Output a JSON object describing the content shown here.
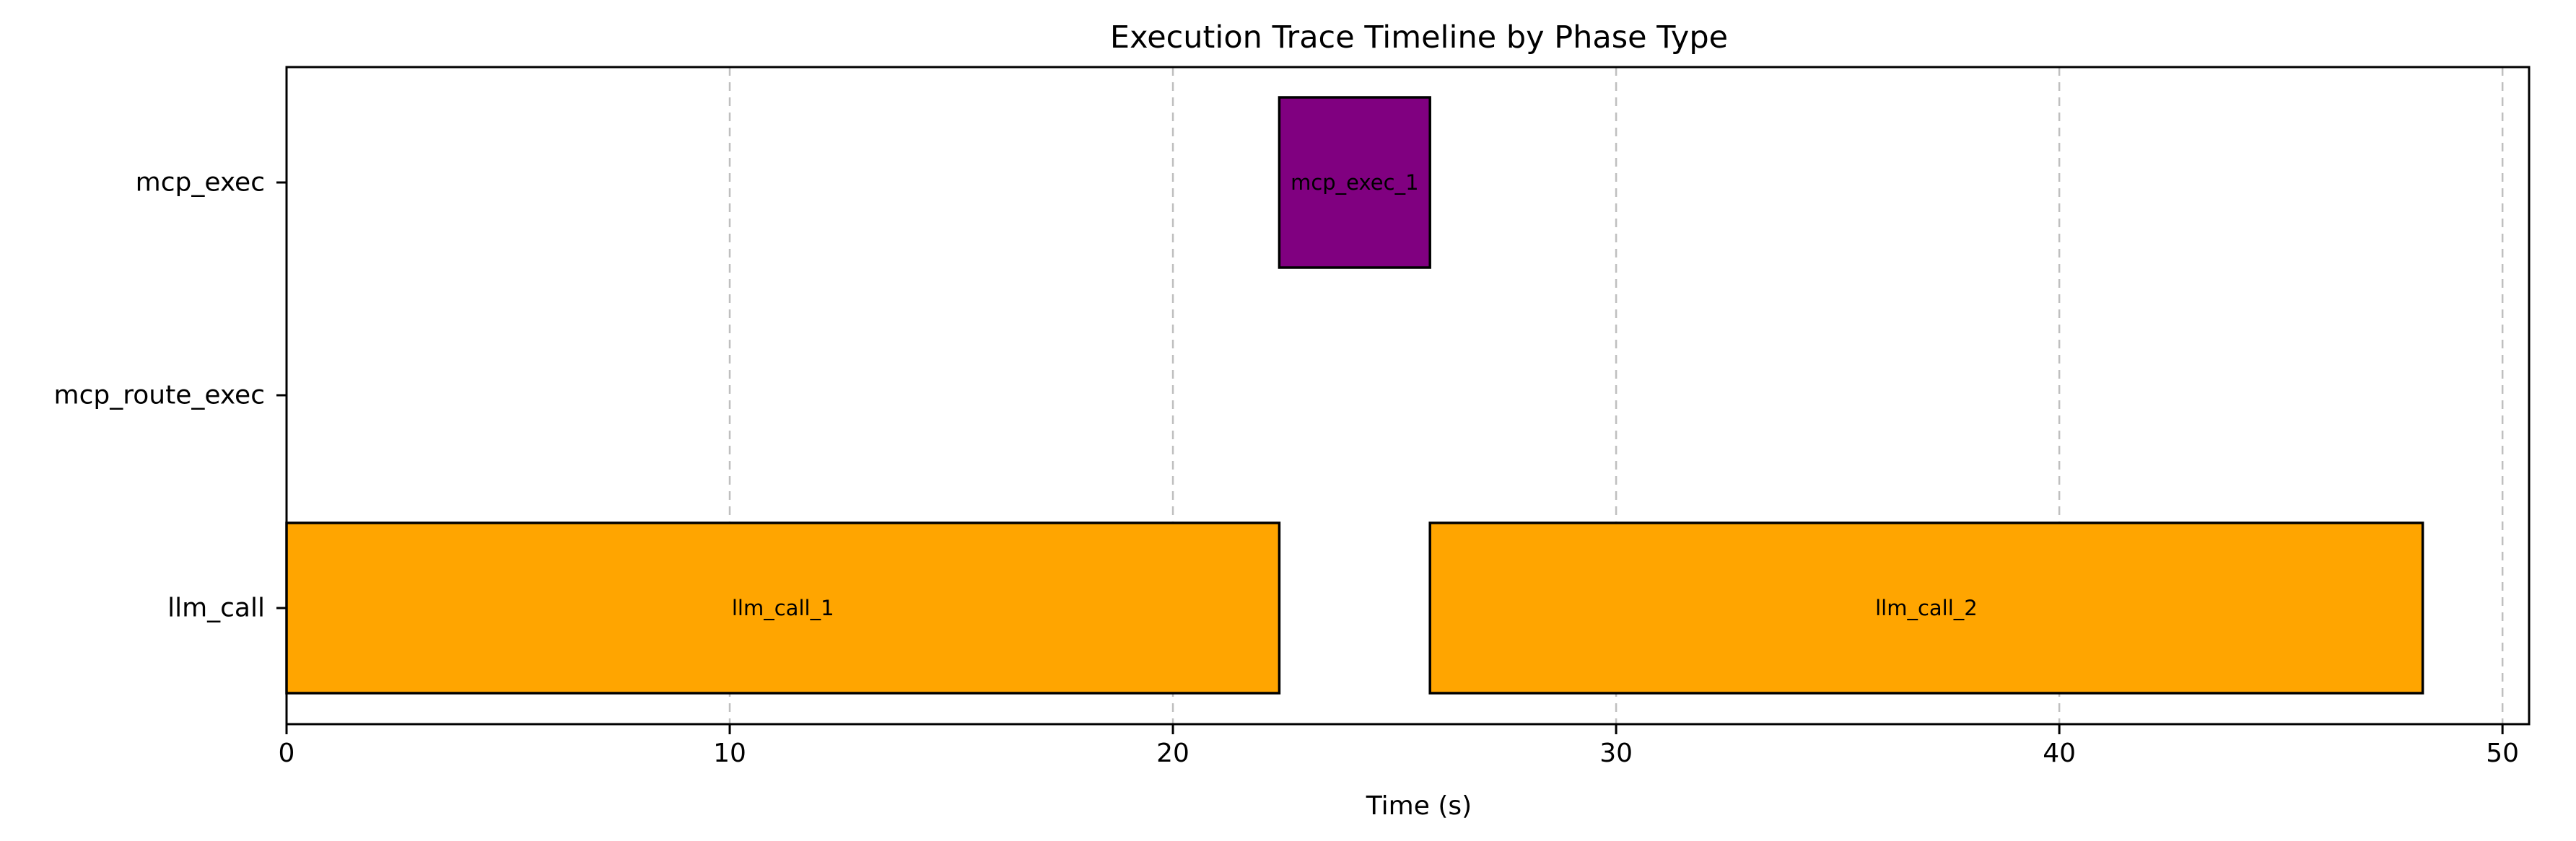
{
  "chart_data": {
    "type": "bar",
    "orientation": "horizontal",
    "title": "Execution Trace Timeline by Phase Type",
    "xlabel": "Time (s)",
    "ylabel": "",
    "xlim": [
      0,
      50.6
    ],
    "x_ticks": [
      0,
      10,
      20,
      30,
      40,
      50
    ],
    "categories": [
      "mcp_exec",
      "mcp_route_exec",
      "llm_call"
    ],
    "grid": {
      "x": true,
      "y": false,
      "style": "dashed"
    },
    "bars": [
      {
        "category": "llm_call",
        "label": "llm_call_1",
        "start": 0,
        "end": 22.4,
        "color": "#FFA500"
      },
      {
        "category": "mcp_exec",
        "label": "mcp_exec_1",
        "start": 22.4,
        "end": 25.8,
        "color": "#800080"
      },
      {
        "category": "llm_call",
        "label": "llm_call_2",
        "start": 25.8,
        "end": 48.2,
        "color": "#FFA500"
      }
    ]
  }
}
